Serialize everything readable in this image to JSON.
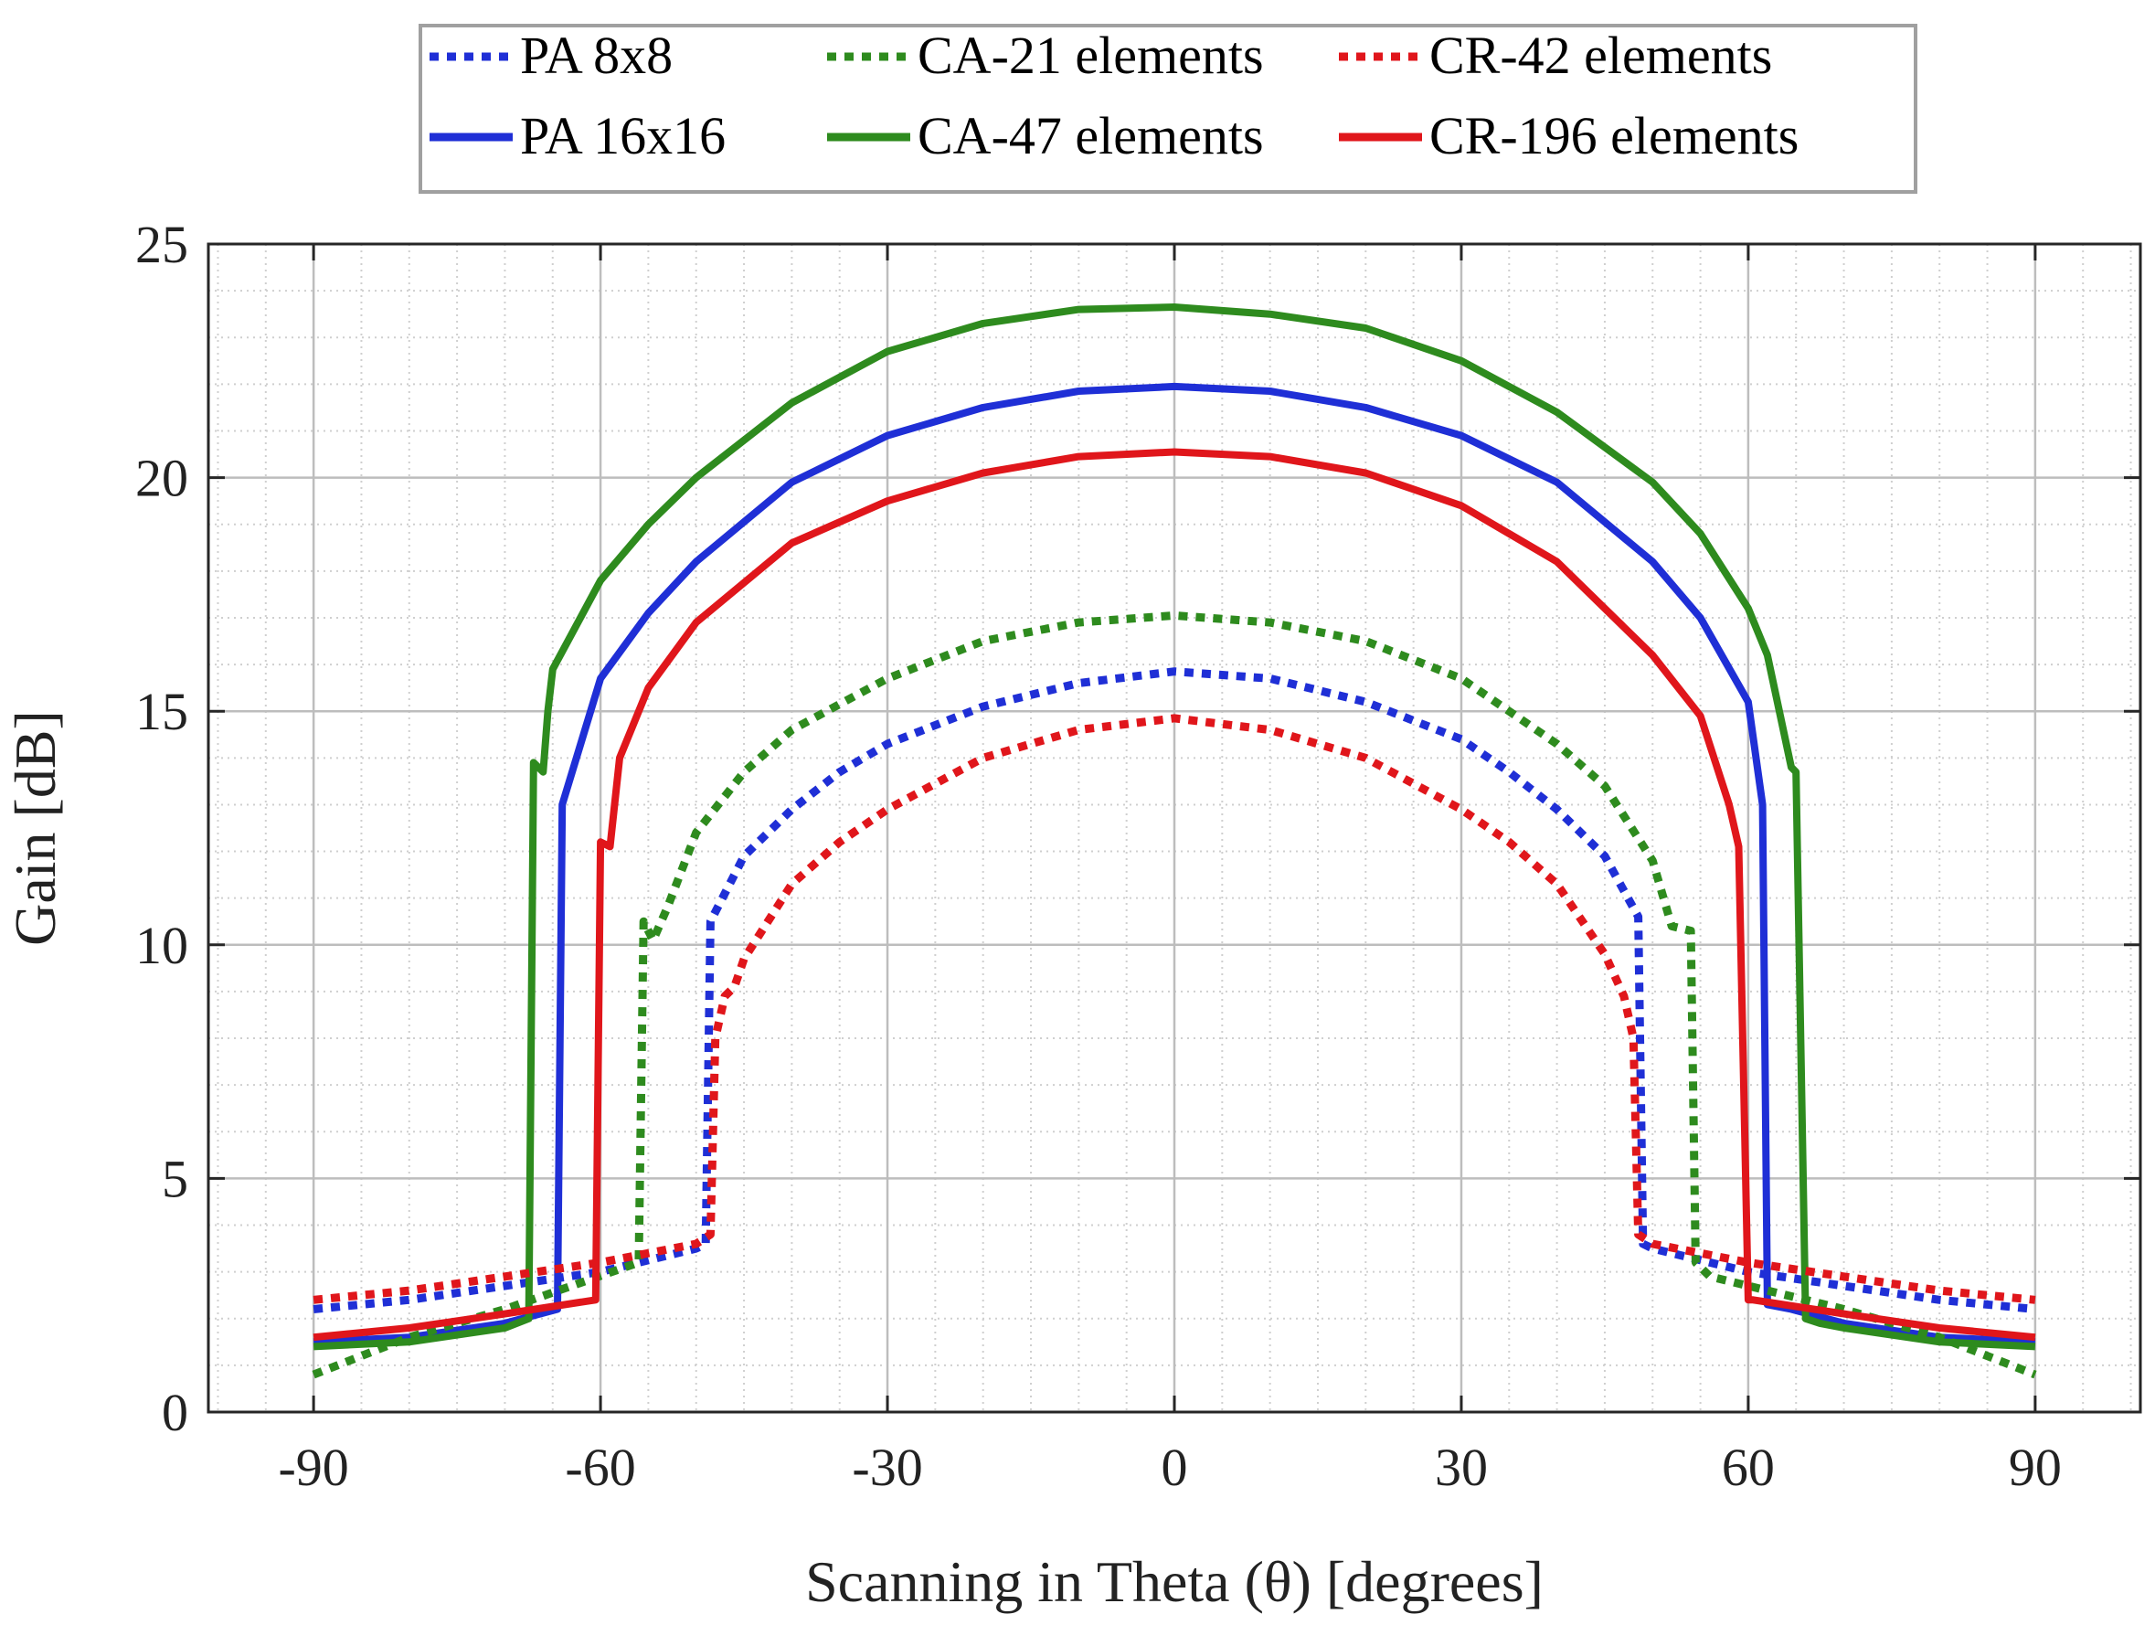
{
  "chart_data": {
    "type": "line",
    "title": "",
    "xlabel": "Scanning in Theta (θ) [degrees]",
    "ylabel": "Gain [dB]",
    "xlim": [
      -101,
      101
    ],
    "ylim": [
      0,
      25
    ],
    "xticks": [
      -90,
      -60,
      -30,
      0,
      30,
      60,
      90
    ],
    "yticks": [
      0,
      5,
      10,
      15,
      20,
      25
    ],
    "grid": true,
    "minor_grid": true,
    "legend_position": "top-center",
    "series": [
      {
        "name": "PA 8x8",
        "color": "#1f2fd6",
        "style": "dotted",
        "x": [
          -90,
          -80,
          -70,
          -60,
          -50,
          -49,
          -48.5,
          -45,
          -40,
          -35,
          -30,
          -20,
          -10,
          0,
          10,
          20,
          30,
          35,
          40,
          45,
          48.5,
          49,
          50,
          60,
          70,
          80,
          90
        ],
        "y": [
          2.2,
          2.4,
          2.7,
          3.0,
          3.5,
          3.6,
          10.5,
          11.9,
          12.9,
          13.7,
          14.3,
          15.1,
          15.6,
          15.85,
          15.7,
          15.2,
          14.4,
          13.7,
          12.9,
          11.9,
          10.6,
          3.6,
          3.5,
          3.0,
          2.7,
          2.4,
          2.2
        ]
      },
      {
        "name": "PA 16x16",
        "color": "#1f2fd6",
        "style": "solid",
        "x": [
          -90,
          -80,
          -70,
          -64.5,
          -64,
          -60,
          -55,
          -50,
          -40,
          -30,
          -20,
          -10,
          0,
          10,
          20,
          30,
          40,
          50,
          55,
          60,
          61.5,
          62,
          64.5,
          70,
          80,
          90
        ],
        "y": [
          1.5,
          1.6,
          1.9,
          2.2,
          13.0,
          15.7,
          17.1,
          18.2,
          19.9,
          20.9,
          21.5,
          21.85,
          21.95,
          21.85,
          21.5,
          20.9,
          19.9,
          18.2,
          17.0,
          15.2,
          13.0,
          2.3,
          2.2,
          1.9,
          1.6,
          1.5
        ]
      },
      {
        "name": "CA-21 elements",
        "color": "#2e8b1e",
        "style": "dotted",
        "x": [
          -90,
          -80,
          -70,
          -56,
          -55.5,
          -54.5,
          -53,
          -50,
          -45,
          -40,
          -30,
          -20,
          -10,
          0,
          10,
          20,
          30,
          40,
          45,
          50,
          52,
          54,
          54.5,
          55.5,
          56,
          70,
          80,
          90
        ],
        "y": [
          0.8,
          1.6,
          2.2,
          3.2,
          10.5,
          10.1,
          10.8,
          12.4,
          13.7,
          14.6,
          15.7,
          16.5,
          16.9,
          17.05,
          16.9,
          16.5,
          15.7,
          14.3,
          13.4,
          11.8,
          10.4,
          10.3,
          3.2,
          3.0,
          2.9,
          2.2,
          1.6,
          0.8
        ]
      },
      {
        "name": "CA-47 elements",
        "color": "#2e8b1e",
        "style": "solid",
        "x": [
          -90,
          -80,
          -70,
          -67.5,
          -67,
          -66,
          -65.5,
          -65,
          -60,
          -55,
          -50,
          -40,
          -30,
          -20,
          -10,
          0,
          10,
          20,
          30,
          40,
          50,
          55,
          60,
          62,
          64.5,
          65,
          66,
          67.5,
          70,
          80,
          90
        ],
        "y": [
          1.4,
          1.5,
          1.8,
          2.0,
          13.9,
          13.7,
          15.0,
          15.9,
          17.8,
          19.0,
          20.0,
          21.6,
          22.7,
          23.3,
          23.6,
          23.65,
          23.5,
          23.2,
          22.5,
          21.4,
          19.9,
          18.8,
          17.2,
          16.2,
          13.8,
          13.7,
          2.0,
          1.9,
          1.8,
          1.5,
          1.4
        ]
      },
      {
        "name": "CR-42 elements",
        "color": "#e0161b",
        "style": "dotted",
        "x": [
          -90,
          -80,
          -70,
          -60,
          -50,
          -48.5,
          -48,
          -47,
          -46,
          -45,
          -40,
          -35,
          -30,
          -20,
          -10,
          0,
          10,
          20,
          30,
          35,
          40,
          45,
          47,
          48,
          48.5,
          50,
          60,
          70,
          80,
          90
        ],
        "y": [
          2.4,
          2.6,
          2.9,
          3.2,
          3.6,
          3.8,
          8.0,
          8.9,
          9.1,
          9.7,
          11.3,
          12.2,
          12.9,
          14.0,
          14.6,
          14.85,
          14.6,
          14.0,
          12.9,
          12.2,
          11.3,
          9.8,
          8.9,
          8.0,
          3.8,
          3.6,
          3.2,
          2.9,
          2.6,
          2.4
        ]
      },
      {
        "name": "CR-196 elements",
        "color": "#e0161b",
        "style": "solid",
        "x": [
          -90,
          -80,
          -70,
          -60.5,
          -60,
          -59,
          -58,
          -55,
          -50,
          -40,
          -30,
          -20,
          -10,
          0,
          10,
          20,
          30,
          40,
          50,
          55,
          58,
          59,
          60,
          60.5,
          70,
          80,
          90
        ],
        "y": [
          1.6,
          1.8,
          2.1,
          2.4,
          12.2,
          12.1,
          14.0,
          15.5,
          16.9,
          18.6,
          19.5,
          20.1,
          20.45,
          20.55,
          20.45,
          20.1,
          19.4,
          18.2,
          16.2,
          14.9,
          13.0,
          12.1,
          2.4,
          2.4,
          2.1,
          1.8,
          1.6
        ]
      }
    ]
  }
}
